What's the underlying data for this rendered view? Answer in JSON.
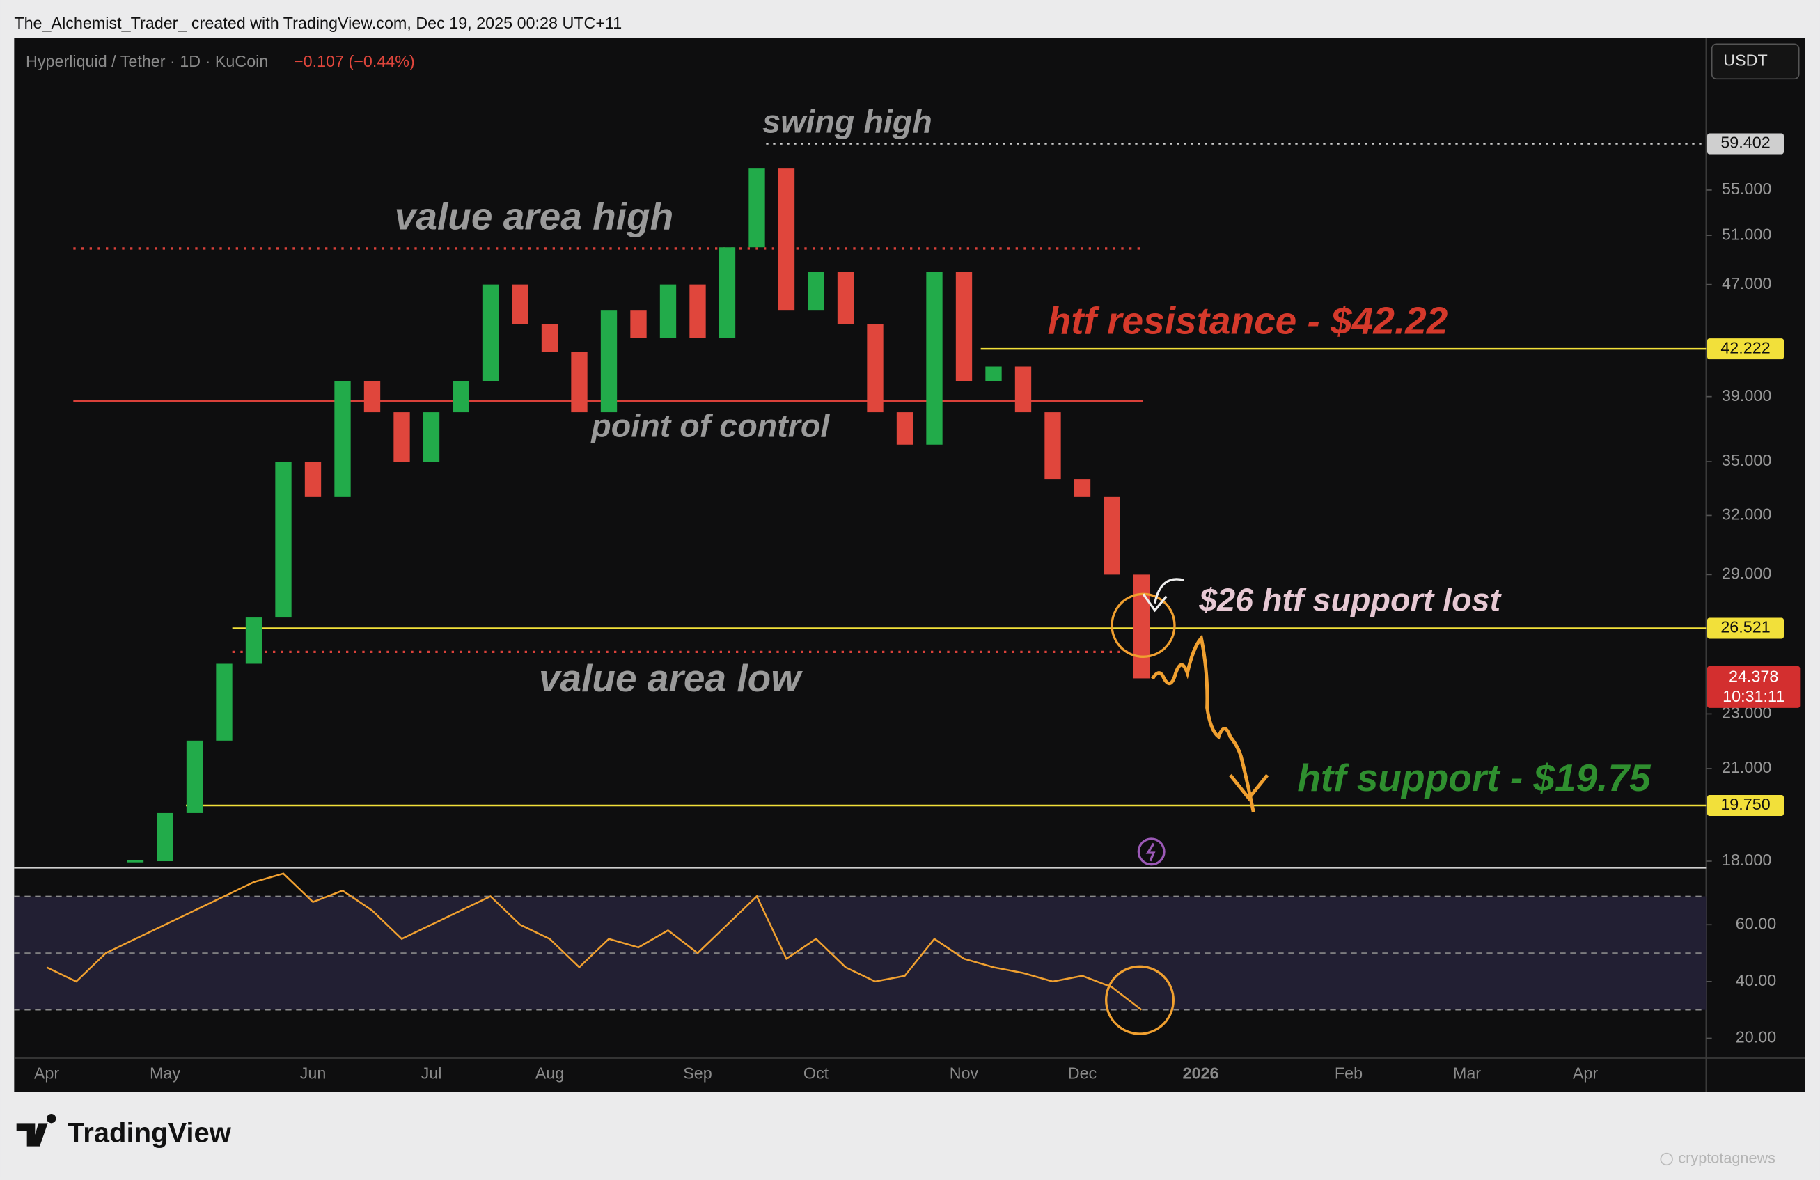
{
  "header": {
    "caption": "The_Alchemist_Trader_ created with TradingView.com, Dec 19, 2025 00:28 UTC+11"
  },
  "footer": {
    "brand": "TradingView",
    "watermark": "cryptotagnews"
  },
  "chart_data": [
    {
      "type": "candles",
      "symbol": "Hyperliquid / Tether · 1D · KuCoin",
      "change": "−0.107 (−0.44%)",
      "currency": "USDT",
      "categories": [
        "Apr",
        null,
        null,
        null,
        "May",
        null,
        null,
        null,
        null,
        "Jun",
        null,
        null,
        null,
        "Jul",
        null,
        null,
        null,
        "Aug",
        null,
        null,
        null,
        null,
        "Sep",
        null,
        null,
        null,
        "Oct",
        null,
        null,
        null,
        null,
        "Nov",
        null,
        null,
        null,
        "Dec",
        null,
        null,
        null,
        "2026",
        null,
        null,
        null,
        null,
        "Feb",
        null,
        null,
        null,
        "Mar",
        null,
        null,
        null,
        "Apr"
      ],
      "values": [
        null,
        null,
        null,
        18,
        19.5,
        22,
        25,
        27,
        35,
        33,
        40,
        38,
        35,
        38,
        40,
        47,
        44,
        42,
        38,
        45,
        43,
        47,
        43,
        50,
        57,
        45,
        48,
        44,
        38,
        36,
        48,
        40,
        41,
        38,
        34,
        33,
        29,
        24.4,
        null,
        null,
        null,
        null,
        null,
        null,
        null,
        null,
        null,
        null,
        null,
        null,
        null,
        null,
        null
      ],
      "up_color": "#22ab4a",
      "down_color": "#e0463c",
      "log_scale": true,
      "ylim": [
        17.8,
        70.8
      ],
      "yticks": [
        {
          "value": 18,
          "label": "18.000"
        },
        {
          "value": 21,
          "label": "21.000"
        },
        {
          "value": 23,
          "label": "23.000"
        },
        {
          "value": 29,
          "label": "29.000"
        },
        {
          "value": 32,
          "label": "32.000"
        },
        {
          "value": 35,
          "label": "35.000"
        },
        {
          "value": 39,
          "label": "39.000"
        },
        {
          "value": 47,
          "label": "47.000"
        },
        {
          "value": 51,
          "label": "51.000"
        },
        {
          "value": 55,
          "label": "55.000"
        }
      ],
      "levels": [
        {
          "value": 59.402,
          "color": "#cfcfcf"
        },
        {
          "value": 42.222,
          "color": "#f2e03a"
        },
        {
          "value": 26.521,
          "color": "#f2e03a"
        },
        {
          "value": 19.75,
          "label": "19.750",
          "color": "#f2e03a"
        }
      ],
      "zones": [
        {
          "value": 49.9,
          "color": "#d9413a"
        },
        {
          "value": 38.7,
          "color": "#d9413a"
        },
        {
          "value": 25.5,
          "color": "#d9413a"
        }
      ],
      "last": {
        "value": 24.378,
        "countdown": "10:31:11",
        "color": "#d32f2f"
      },
      "annotations": [
        {
          "text": "swing high",
          "color": "#9a9a9a"
        },
        {
          "text": "value area high",
          "color": "#9a9a9a"
        },
        {
          "text": "htf resistance - $42.22",
          "color": "#d5392b"
        },
        {
          "text": "point of control",
          "color": "#9a9a9a"
        },
        {
          "text": "$26 htf support lost",
          "color": "#e6c8d3"
        },
        {
          "text": "value area low",
          "color": "#9a9a9a"
        },
        {
          "text": "htf support - $19.75",
          "color": "#2f8f2f"
        }
      ]
    },
    {
      "type": "line",
      "values": [
        45,
        40,
        50,
        55,
        60,
        65,
        70,
        75,
        78,
        68,
        72,
        65,
        55,
        60,
        65,
        70,
        60,
        55,
        45,
        55,
        52,
        58,
        50,
        60,
        70,
        48,
        55,
        45,
        40,
        42,
        55,
        48,
        45,
        43,
        40,
        42,
        38,
        30,
        null,
        null,
        null,
        null,
        null,
        null,
        null,
        null,
        null,
        null,
        null,
        null,
        null,
        null,
        null
      ],
      "color": "#f0a030",
      "ylim": [
        13,
        80
      ],
      "yticks": [
        {
          "value": 20,
          "label": "20.00"
        },
        {
          "value": 40,
          "label": "40.00"
        },
        {
          "value": 60,
          "label": "60.00"
        }
      ],
      "bands": [
        30,
        50,
        70
      ],
      "band_fill": "#221f33"
    }
  ]
}
